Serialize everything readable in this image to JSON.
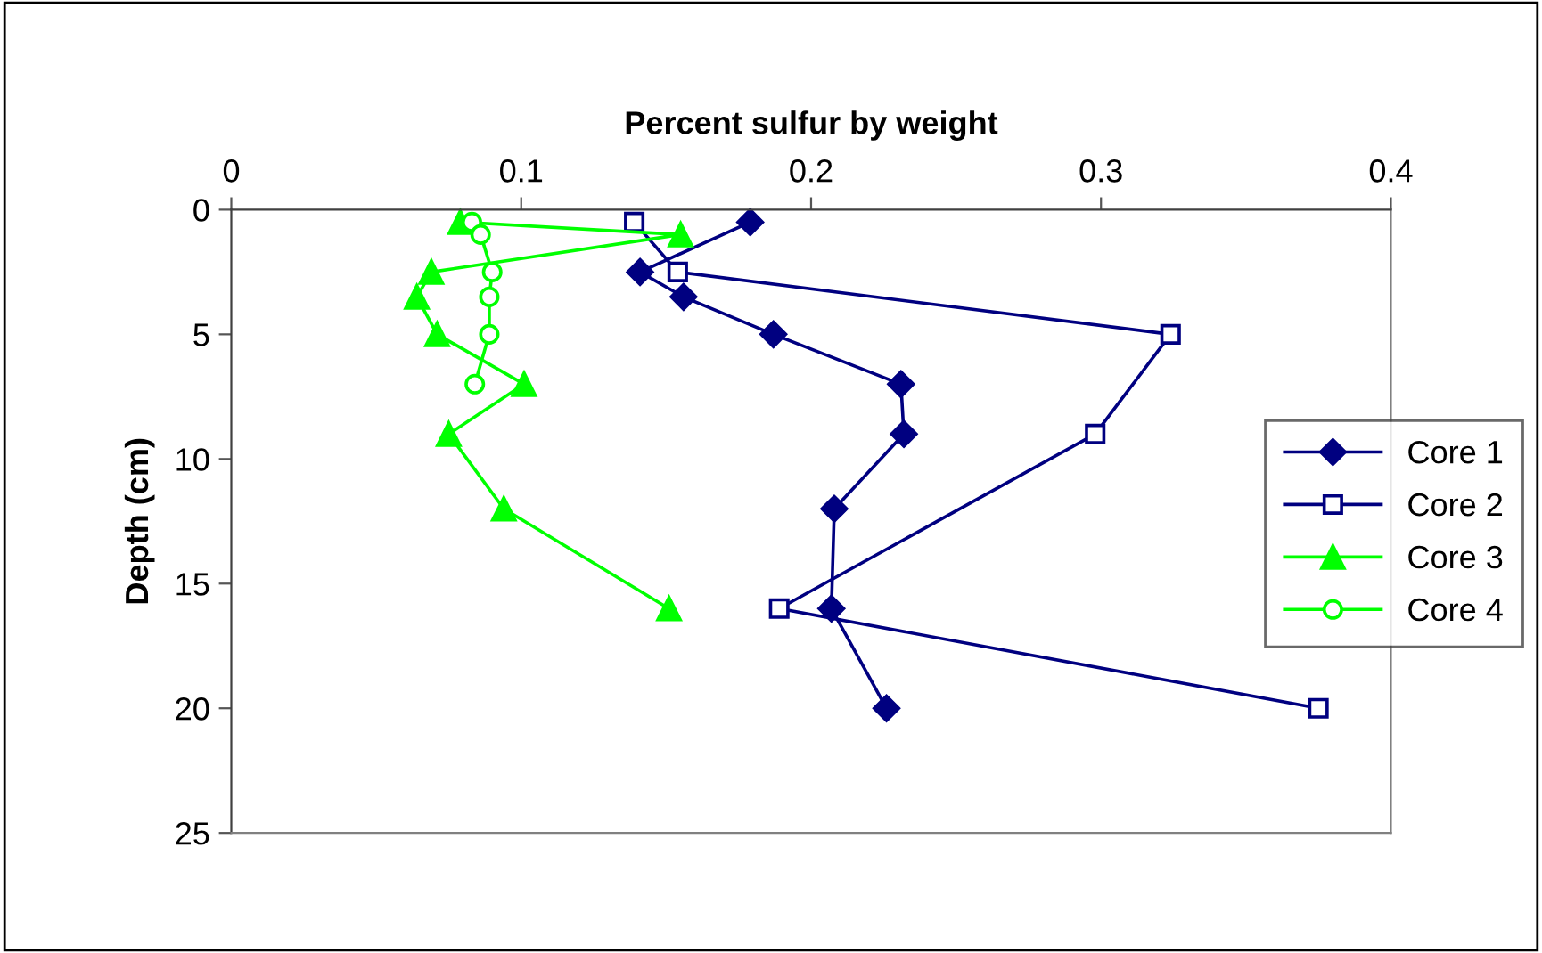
{
  "chart_data": {
    "type": "line",
    "xlabel": "Percent sulfur by weight",
    "ylabel": "Depth (cm)",
    "xlim": [
      0,
      0.4
    ],
    "xticks": [
      0,
      0.1,
      0.2,
      0.3,
      0.4
    ],
    "ylim": [
      25,
      0
    ],
    "yticks": [
      0,
      5,
      10,
      15,
      20,
      25
    ],
    "grid": false,
    "legend": "right",
    "series": [
      {
        "name": "Core 1",
        "color": "#000080",
        "marker": "diamond",
        "x": [
          0.179,
          0.141,
          0.156,
          0.187,
          0.231,
          0.232,
          0.208,
          0.207,
          0.226
        ],
        "values": [
          0.5,
          2.5,
          3.5,
          5,
          7,
          9,
          12,
          16,
          20
        ]
      },
      {
        "name": "Core 2",
        "color": "#000080",
        "marker": "square",
        "x": [
          0.139,
          0.154,
          0.324,
          0.298,
          0.189,
          0.375
        ],
        "values": [
          0.5,
          2.5,
          5,
          9,
          16,
          20
        ]
      },
      {
        "name": "Core 3",
        "color": "#00ff00",
        "marker": "triangle",
        "x": [
          0.079,
          0.155,
          0.069,
          0.064,
          0.071,
          0.101,
          0.075,
          0.094,
          0.151
        ],
        "values": [
          0.5,
          1,
          2.5,
          3.5,
          5,
          7,
          9,
          12,
          16
        ]
      },
      {
        "name": "Core 4",
        "color": "#00ff00",
        "marker": "circle",
        "x": [
          0.083,
          0.086,
          0.09,
          0.089,
          0.089,
          0.084
        ],
        "values": [
          0.5,
          1,
          2.5,
          3.5,
          5,
          7
        ]
      }
    ]
  }
}
